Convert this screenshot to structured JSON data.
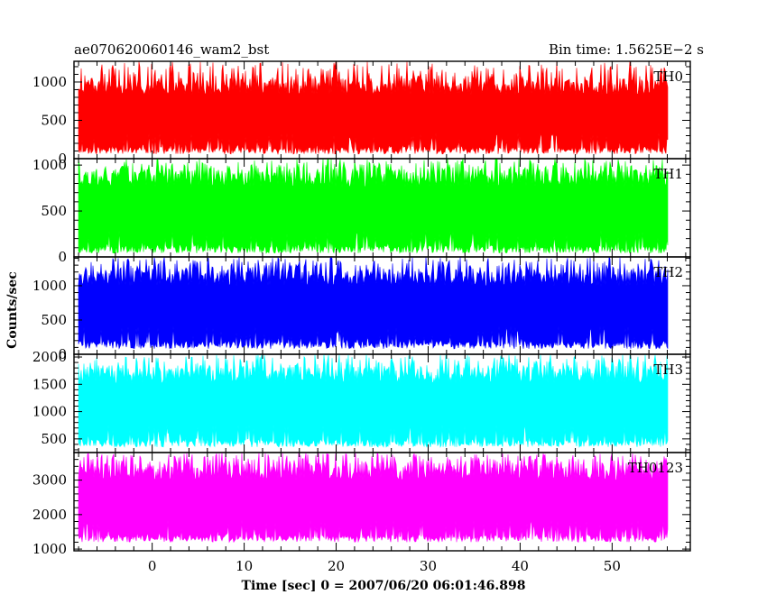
{
  "chart_data": {
    "type": "bar",
    "title_left": "ae070620060146_wam2_bst",
    "title_right": "Bin time: 1.5625E−2 s",
    "xlabel": "Time [sec] 0 = 2007/06/20 06:01:46.898",
    "ylabel": "Counts/sec",
    "xlim": [
      -8.5,
      58.5
    ],
    "data_xrange": [
      -8,
      56
    ],
    "x_ticks": [
      0,
      10,
      20,
      30,
      40,
      50
    ],
    "grid": false,
    "panels": [
      {
        "name": "TH0",
        "color": "#ff0000",
        "ylim": [
          0,
          1270
        ],
        "y_ticks": [
          0,
          500,
          1000
        ],
        "y_tick_labels": [
          "0",
          "500",
          "1000"
        ],
        "typical_min": 60,
        "typical_max": 1050,
        "spike_max": 1270
      },
      {
        "name": "TH1",
        "color": "#00ff00",
        "ylim": [
          0,
          1070
        ],
        "y_ticks": [
          0,
          500,
          1000
        ],
        "y_tick_labels": [
          "0",
          "500",
          "1000"
        ],
        "typical_min": 40,
        "typical_max": 960,
        "spike_max": 1070
      },
      {
        "name": "TH2",
        "color": "#0000ff",
        "ylim": [
          0,
          1420
        ],
        "y_ticks": [
          0,
          500,
          1000
        ],
        "y_tick_labels": [
          "0",
          "500",
          "1000"
        ],
        "typical_min": 80,
        "typical_max": 1250,
        "spike_max": 1420
      },
      {
        "name": "TH3",
        "color": "#00ffff",
        "ylim": [
          250,
          2050
        ],
        "y_ticks": [
          500,
          1000,
          1500,
          2000
        ],
        "y_tick_labels": [
          "500",
          "1000",
          "1500",
          "2000"
        ],
        "typical_min": 350,
        "typical_max": 1850,
        "spike_max": 2050
      },
      {
        "name": "TH0123",
        "color": "#ff00ff",
        "ylim": [
          950,
          3800
        ],
        "y_ticks": [
          1000,
          2000,
          3000
        ],
        "y_tick_labels": [
          "1000",
          "2000",
          "3000"
        ],
        "typical_min": 1200,
        "typical_max": 3500,
        "spike_max": 3800
      }
    ]
  }
}
